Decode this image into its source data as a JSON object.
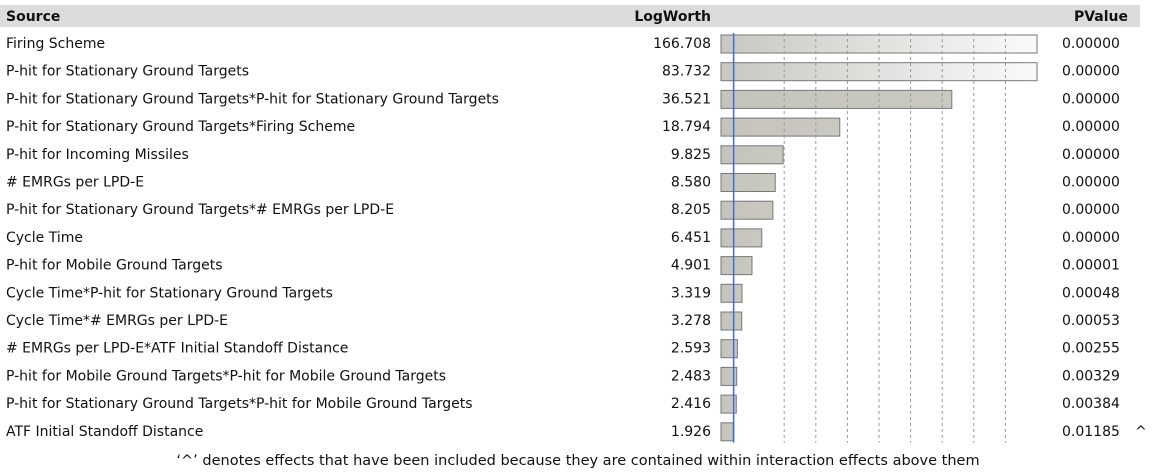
{
  "table": {
    "headers": [
      "Source",
      "LogWorth",
      "PValue"
    ],
    "sources": [
      "Firing Scheme",
      "P-hit for Stationary Ground Targets",
      "P-hit for Stationary Ground Targets*P-hit for Stationary Ground Targets",
      "P-hit for Stationary Ground Targets*Firing Scheme",
      "P-hit for Incoming Missiles",
      "# EMRGs per LPD-E",
      "P-hit for Stationary Ground Targets*# EMRGs per LPD-E",
      "Cycle Time",
      "P-hit for Mobile Ground Targets",
      "Cycle Time*P-hit for Stationary Ground Targets",
      "Cycle Time*# EMRGs per LPD-E",
      "# EMRGs per LPD-E*ATF Initial Standoff Distance",
      "P-hit for Mobile Ground Targets*P-hit for Mobile Ground Targets",
      "P-hit for Stationary Ground Targets*P-hit for Mobile Ground Targets",
      "ATF Initial Standoff Distance"
    ],
    "logworth": [
      166.708,
      83.732,
      36.521,
      18.794,
      9.825,
      8.58,
      8.205,
      6.451,
      4.901,
      3.319,
      3.278,
      2.593,
      2.483,
      2.416,
      1.926
    ],
    "logworth_labels": [
      "166.708",
      "83.732",
      "36.521",
      "18.794",
      "9.825",
      "8.580",
      "8.205",
      "6.451",
      "4.901",
      "3.319",
      "3.278",
      "2.593",
      "2.483",
      "2.416",
      "1.926"
    ],
    "pvalues": [
      "0.00000",
      "0.00000",
      "0.00000",
      "0.00000",
      "0.00000",
      "0.00000",
      "0.00000",
      "0.00000",
      "0.00001",
      "0.00048",
      "0.00053",
      "0.00255",
      "0.00329",
      "0.00384",
      "0.01185"
    ],
    "flags": [
      null,
      null,
      null,
      null,
      null,
      null,
      null,
      null,
      null,
      null,
      null,
      null,
      null,
      null,
      "^"
    ],
    "bar_scale": {
      "xlim": [
        0,
        50
      ],
      "gridlines": [
        10,
        15,
        20,
        25,
        30,
        35,
        40,
        45
      ],
      "reference": 2
    }
  },
  "footnote": "‘^’ denotes effects that have been included because they are contained within interaction effects above them"
}
